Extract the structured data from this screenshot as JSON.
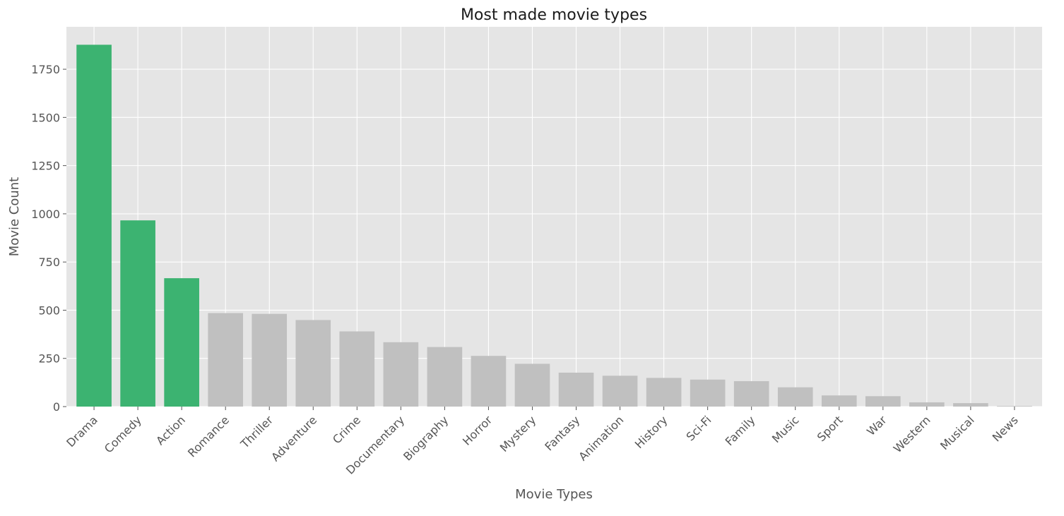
{
  "chart_data": {
    "type": "bar",
    "title": "Most made movie types",
    "xlabel": "Movie Types",
    "ylabel": "Movie Count",
    "categories": [
      "Drama",
      "Comedy",
      "Action",
      "Romance",
      "Thriller",
      "Adventure",
      "Crime",
      "Documentary",
      "Biography",
      "Horror",
      "Mystery",
      "Fantasy",
      "Animation",
      "History",
      "Sci-Fi",
      "Family",
      "Music",
      "Sport",
      "War",
      "Western",
      "Musical",
      "News"
    ],
    "values": [
      1877,
      966,
      666,
      485,
      481,
      449,
      390,
      334,
      309,
      263,
      222,
      176,
      160,
      149,
      140,
      132,
      100,
      58,
      54,
      22,
      18,
      3
    ],
    "highlight_count": 3,
    "colors": {
      "highlight": "#3cb371",
      "default": "#c0c0c0",
      "plot_bg": "#e5e5e5"
    },
    "ylim": [
      0,
      1970
    ],
    "yticks": [
      0,
      250,
      500,
      750,
      1000,
      1250,
      1500,
      1750
    ],
    "grid": true
  }
}
